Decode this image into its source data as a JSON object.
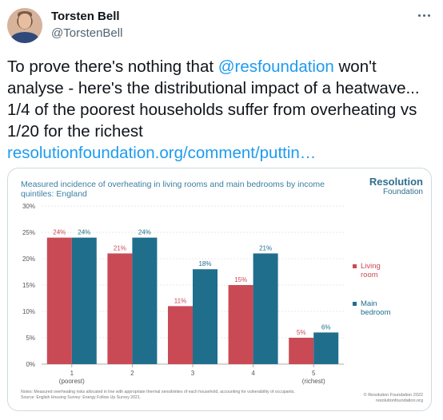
{
  "tweet": {
    "author_name": "Torsten Bell",
    "author_handle": "@TorstenBell",
    "text_before_mention": "To prove there's nothing that ",
    "mention": "@resfoundation",
    "text_after_mention": " won't analyse - here's the distributional impact of a heatwave... 1/4 of the poorest households suffer from overheating vs 1/20 for the richest",
    "link": "resolutionfoundation.org/comment/puttin…",
    "more_icon": "more-horizontal-icon"
  },
  "card": {
    "title": "Measured incidence of overheating in living rooms and main bedrooms by income quintiles: England",
    "brand_line1": "Resolution",
    "brand_line2": "Foundation",
    "notes_line1": "Notes: Measured overheating risks allocated in line with appropriate thermal sensitivities of each household, accounting for vulnerability of occupants.",
    "notes_line2": "Source: English Housing Survey: Energy Follow Up Survey 2021.",
    "copyright_line1": "© Resolution Foundation 2022",
    "copyright_line2": "resolutionfoundation.org"
  },
  "chart_data": {
    "type": "bar",
    "title": "Measured incidence of overheating in living rooms and main bedrooms by income quintiles: England",
    "categories": [
      "1",
      "2",
      "3",
      "4",
      "5"
    ],
    "category_sublabels": [
      "(poorest)",
      "",
      "",
      "",
      "(richest)"
    ],
    "series": [
      {
        "name": "Living room",
        "values": [
          24,
          21,
          11,
          15,
          5
        ],
        "color": "#c94a55"
      },
      {
        "name": "Main bedroom",
        "values": [
          24,
          24,
          18,
          21,
          6
        ],
        "color": "#1f6e8c"
      }
    ],
    "data_labels": [
      [
        "24%",
        "21%",
        "11%",
        "15%",
        "5%"
      ],
      [
        "24%",
        "24%",
        "18%",
        "21%",
        "6%"
      ]
    ],
    "y_ticks": [
      "0%",
      "5%",
      "10%",
      "15%",
      "20%",
      "25%",
      "30%"
    ],
    "ylim": [
      0,
      30
    ],
    "grid": true,
    "legend_position": "right"
  }
}
